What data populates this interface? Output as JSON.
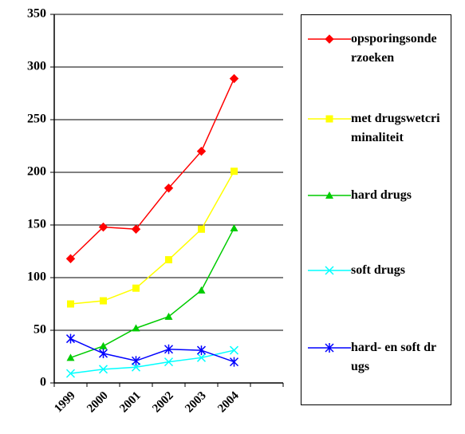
{
  "chart_data": {
    "type": "line",
    "categories": [
      "1999",
      "2000",
      "2001",
      "2002",
      "2003",
      "2004",
      null
    ],
    "series": [
      {
        "name": "opsporingsonderzoeken",
        "color": "#ff0000",
        "marker": "diamond",
        "values": [
          118,
          148,
          146,
          185,
          220,
          289,
          null
        ]
      },
      {
        "name": "met drugswetcriminaliteit",
        "color": "#ffff00",
        "marker": "square",
        "values": [
          75,
          78,
          90,
          117,
          146,
          201,
          null
        ]
      },
      {
        "name": "hard drugs",
        "color": "#00cc00",
        "marker": "triangle",
        "values": [
          24,
          35,
          52,
          63,
          88,
          147,
          null
        ]
      },
      {
        "name": "soft drugs",
        "color": "#00ffff",
        "marker": "x",
        "values": [
          9,
          13,
          15,
          20,
          24,
          31,
          null
        ]
      },
      {
        "name": "hard- en soft drugs",
        "color": "#0000ff",
        "marker": "asterisk",
        "values": [
          42,
          28,
          21,
          32,
          31,
          20,
          null
        ]
      }
    ],
    "ylim": [
      0,
      350
    ],
    "yticks": [
      0,
      50,
      100,
      150,
      200,
      250,
      300,
      350
    ],
    "grid": true
  }
}
